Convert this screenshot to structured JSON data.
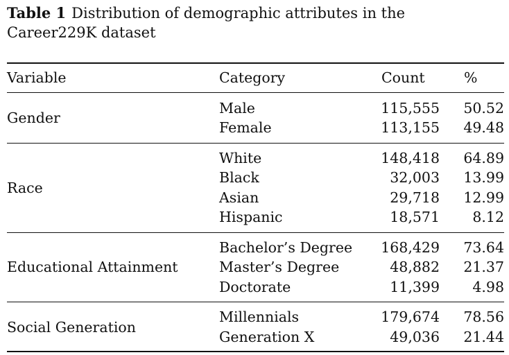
{
  "caption": {
    "label": "Table 1",
    "line1": "Distribution of demographic attributes in the",
    "line2": "Career229K dataset"
  },
  "header": {
    "variable": "Variable",
    "category": "Category",
    "count": "Count",
    "percent": "%"
  },
  "groups": [
    {
      "variable": "Gender",
      "rows": [
        {
          "category": "Male",
          "count": "115,555",
          "percent": "50.52"
        },
        {
          "category": "Female",
          "count": "113,155",
          "percent": "49.48"
        }
      ]
    },
    {
      "variable": "Race",
      "rows": [
        {
          "category": "White",
          "count": "148,418",
          "percent": "64.89"
        },
        {
          "category": "Black",
          "count": "32,003",
          "percent": "13.99"
        },
        {
          "category": "Asian",
          "count": "29,718",
          "percent": "12.99"
        },
        {
          "category": "Hispanic",
          "count": "18,571",
          "percent": "8.12"
        }
      ]
    },
    {
      "variable": "Educational Attainment",
      "rows": [
        {
          "category": "Bachelor’s Degree",
          "count": "168,429",
          "percent": "73.64"
        },
        {
          "category": "Master’s Degree",
          "count": "48,882",
          "percent": "21.37"
        },
        {
          "category": "Doctorate",
          "count": "11,399",
          "percent": "4.98"
        }
      ]
    },
    {
      "variable": "Social Generation",
      "rows": [
        {
          "category": "Millennials",
          "count": "179,674",
          "percent": "78.56"
        },
        {
          "category": "Generation X",
          "count": "49,036",
          "percent": "21.44"
        }
      ]
    }
  ]
}
